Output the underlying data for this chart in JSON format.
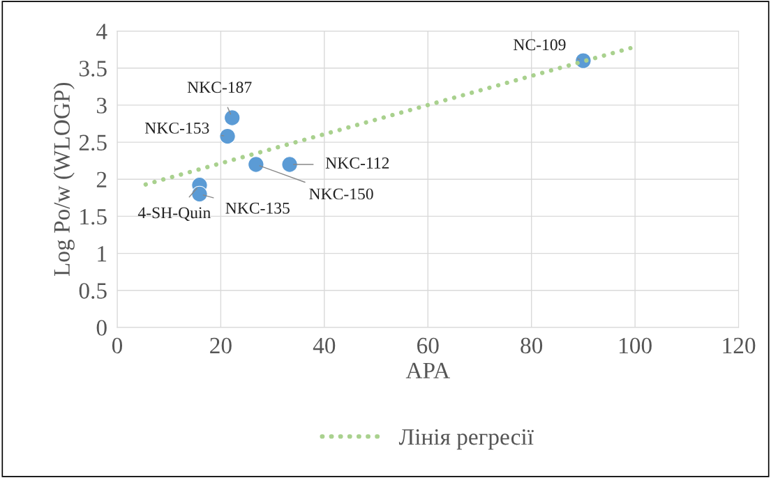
{
  "chart_data": {
    "type": "scatter",
    "xlabel": "APA",
    "ylabel": "Log Po/w (WLOGP)",
    "series": [
      {
        "color": "#5b9bd5",
        "marker": "circle",
        "x": [
          90,
          22.2,
          21.3,
          26.8,
          33.3,
          15.9,
          15.9
        ],
        "values": [
          3.6,
          2.83,
          2.58,
          2.2,
          2.2,
          1.92,
          1.8
        ]
      },
      {
        "type": "line",
        "name": "Лінія регресії",
        "color": "#a9d18e",
        "line_style": "dotted",
        "marker": "none",
        "x": [
          5.5,
          99.1
        ],
        "values": [
          1.93,
          3.77
        ]
      }
    ],
    "annotations": [
      {
        "text": "NC-109",
        "x": 90,
        "y": 3.6
      },
      {
        "text": "NKC-187",
        "x": 22.2,
        "y": 2.83
      },
      {
        "text": "NKC-153",
        "x": 21.3,
        "y": 2.58
      },
      {
        "text": "NKC-150",
        "x": 26.8,
        "y": 2.2
      },
      {
        "text": "NKC-112",
        "x": 33.3,
        "y": 2.2
      },
      {
        "text": "4-SH-Quin",
        "x": 15.9,
        "y": 1.92
      },
      {
        "text": "NKC-135",
        "x": 15.9,
        "y": 1.8
      }
    ],
    "xlim": [
      0,
      120
    ],
    "xticks": [
      0,
      20,
      40,
      60,
      80,
      100,
      120
    ],
    "ylim": [
      0,
      4
    ],
    "yticks": [
      0,
      0.5,
      1,
      1.5,
      2,
      2.5,
      3,
      3.5,
      4
    ],
    "grid": true,
    "legend": "bottom"
  }
}
